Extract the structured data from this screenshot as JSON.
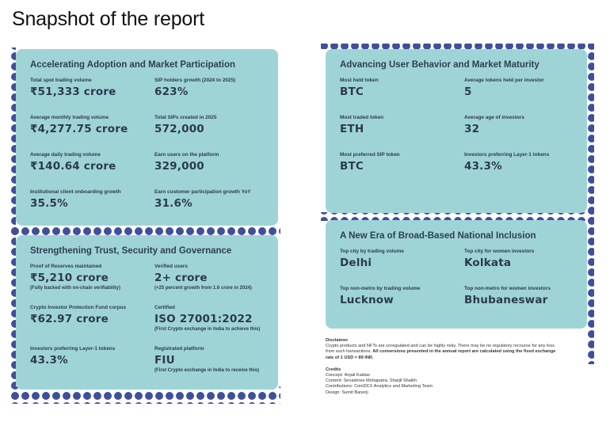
{
  "title": "Snapshot of the report",
  "cards": [
    {
      "heading": "Accelerating Adoption and Market Participation",
      "stats": [
        {
          "label": "Total spot trading volume",
          "value": "₹51,333 crore"
        },
        {
          "label": "SIP holders growth (2024 to 2025)",
          "value": "623%"
        },
        {
          "label": "Average monthly trading volume",
          "value": "₹4,277.75 crore"
        },
        {
          "label": "Total SIPs created in 2025",
          "value": "572,000"
        },
        {
          "label": "Average daily trading volume",
          "value": "₹140.64 crore"
        },
        {
          "label": "Earn users on the platform",
          "value": "329,000"
        },
        {
          "label": "Institutional client onboarding growth",
          "value": "35.5%"
        },
        {
          "label": "Earn customer participation growth YoY",
          "value": "31.6%"
        }
      ]
    },
    {
      "heading": "Strengthening Trust, Security and Governance",
      "stats": [
        {
          "label": "Proof of Reserves maintained",
          "value": "₹5,210 crore",
          "note": "(Fully backed with on-chain verifiability)"
        },
        {
          "label": "Verified users",
          "value": "2+ crore",
          "note": "(+25 percent growth from 1.6 crore in 2024)"
        },
        {
          "label": "Crypto Investor Protection Fund corpus",
          "value": "₹62.97 crore"
        },
        {
          "label": "Certified",
          "value": "ISO 27001:2022",
          "note": "(First Crypto exchange in India to achieve this)"
        },
        {
          "label": "Investors preferring Layer-1 tokens",
          "value": "43.3%"
        },
        {
          "label": "Registrated platform",
          "value": "FIU",
          "note": "(First Crypto exchange in India to receive this)"
        }
      ]
    },
    {
      "heading": "Advancing User Behavior and Market Maturity",
      "stats": [
        {
          "label": "Most held token",
          "value": "BTC"
        },
        {
          "label": "Average tokens held per investor",
          "value": "5"
        },
        {
          "label": "Most traded token",
          "value": "ETH"
        },
        {
          "label": "Average age of investors",
          "value": "32"
        },
        {
          "label": "Most preferred SIP token",
          "value": "BTC"
        },
        {
          "label": "Investors preferring Layer-1 tokens",
          "value": "43.3%"
        }
      ]
    },
    {
      "heading": "A New Era of Broad-Based National Inclusion",
      "stats": [
        {
          "label": "Top city by trading volume",
          "value": "Delhi"
        },
        {
          "label": "Top city for women investors",
          "value": "Kolkata"
        },
        {
          "label": "Top non-metro by trading volume",
          "value": "Lucknow"
        },
        {
          "label": "Top non-metro for women investors",
          "value": "Bhubaneswar"
        }
      ]
    }
  ],
  "disclaimer": {
    "heading": "Disclaimer",
    "text": "Crypto products and NFTs are unregulated and can be highly risky. There may be no regulatory recourse for any loss from such transactions.",
    "emphasis": "All conversions presented in the annual report are calculated using the fixed exchange rate of 1 USD = 89 INR."
  },
  "credits": {
    "heading": "Credits",
    "lines": [
      "Concept: Anjali Kakkar",
      "Content: Sevashree Mohapatra, Sharjil Shaikh",
      "Contributions: CoinDCX Analytics and Marketing Team",
      "Design: Sumit Banerji"
    ]
  }
}
